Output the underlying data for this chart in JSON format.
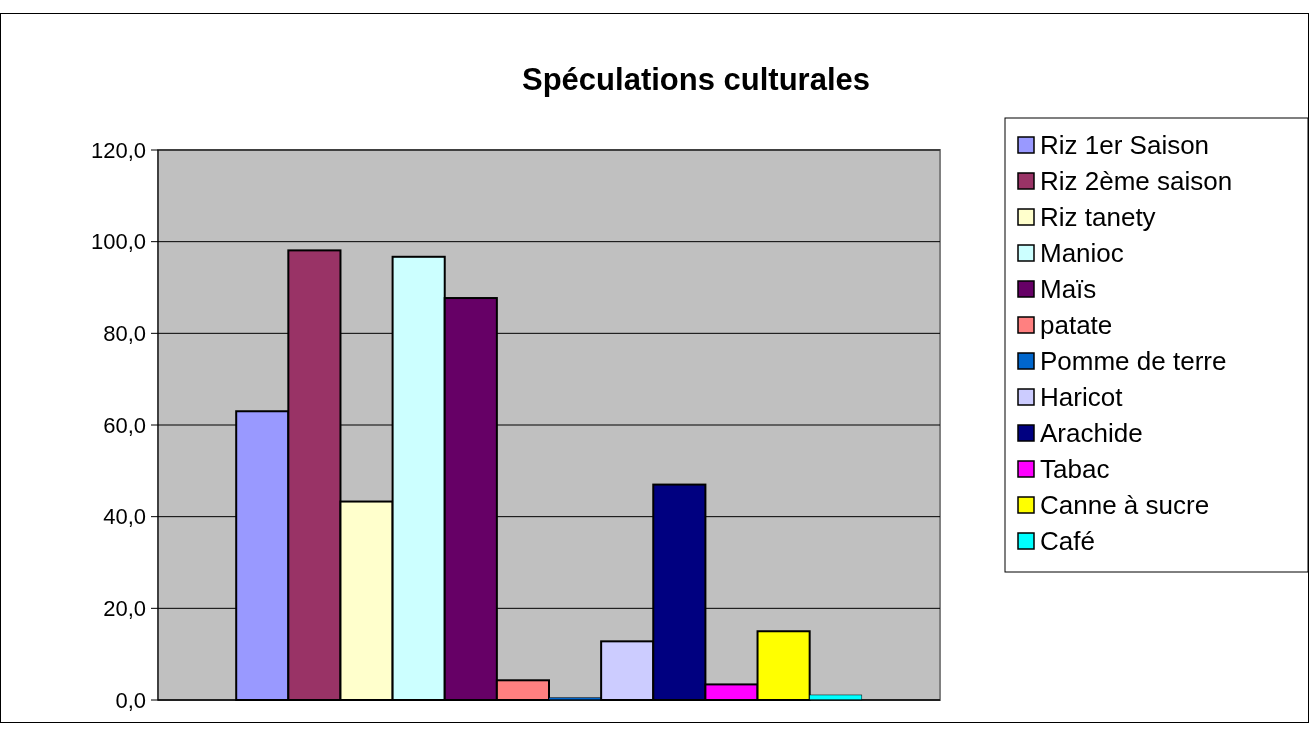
{
  "chart_data": {
    "type": "bar",
    "title": "Spéculations culturales",
    "categories": [
      null
    ],
    "series": [
      {
        "name": "Riz 1er Saison",
        "color": "#9999ff",
        "values": [
          63.0
        ]
      },
      {
        "name": "Riz 2ème saison",
        "color": "#993366",
        "values": [
          98.1
        ]
      },
      {
        "name": "Riz tanety",
        "color": "#ffffcc",
        "values": [
          43.3
        ]
      },
      {
        "name": "Manioc",
        "color": "#ccffff",
        "values": [
          96.7
        ]
      },
      {
        "name": "Maïs",
        "color": "#660066",
        "values": [
          87.7
        ]
      },
      {
        "name": "patate",
        "color": "#ff8080",
        "values": [
          4.3
        ]
      },
      {
        "name": "Pomme de terre",
        "color": "#0066cc",
        "values": [
          0.5
        ]
      },
      {
        "name": "Haricot",
        "color": "#ccccff",
        "values": [
          12.8
        ]
      },
      {
        "name": "Arachide",
        "color": "#000080",
        "values": [
          47.0
        ]
      },
      {
        "name": "Tabac",
        "color": "#ff00ff",
        "values": [
          3.4
        ]
      },
      {
        "name": "Canne à sucre",
        "color": "#ffff00",
        "values": [
          15.0
        ]
      },
      {
        "name": "Café",
        "color": "#00ffff",
        "values": [
          1.1
        ]
      }
    ],
    "ylim": [
      0,
      120
    ],
    "yticks": [
      {
        "value": 0,
        "label": "0,0"
      },
      {
        "value": 20,
        "label": "20,0"
      },
      {
        "value": 40,
        "label": "40,0"
      },
      {
        "value": 60,
        "label": "60,0"
      },
      {
        "value": 80,
        "label": "80,0"
      },
      {
        "value": 100,
        "label": "100,0"
      },
      {
        "value": 120,
        "label": "120,0"
      }
    ],
    "grid": "y",
    "legend": "right"
  }
}
